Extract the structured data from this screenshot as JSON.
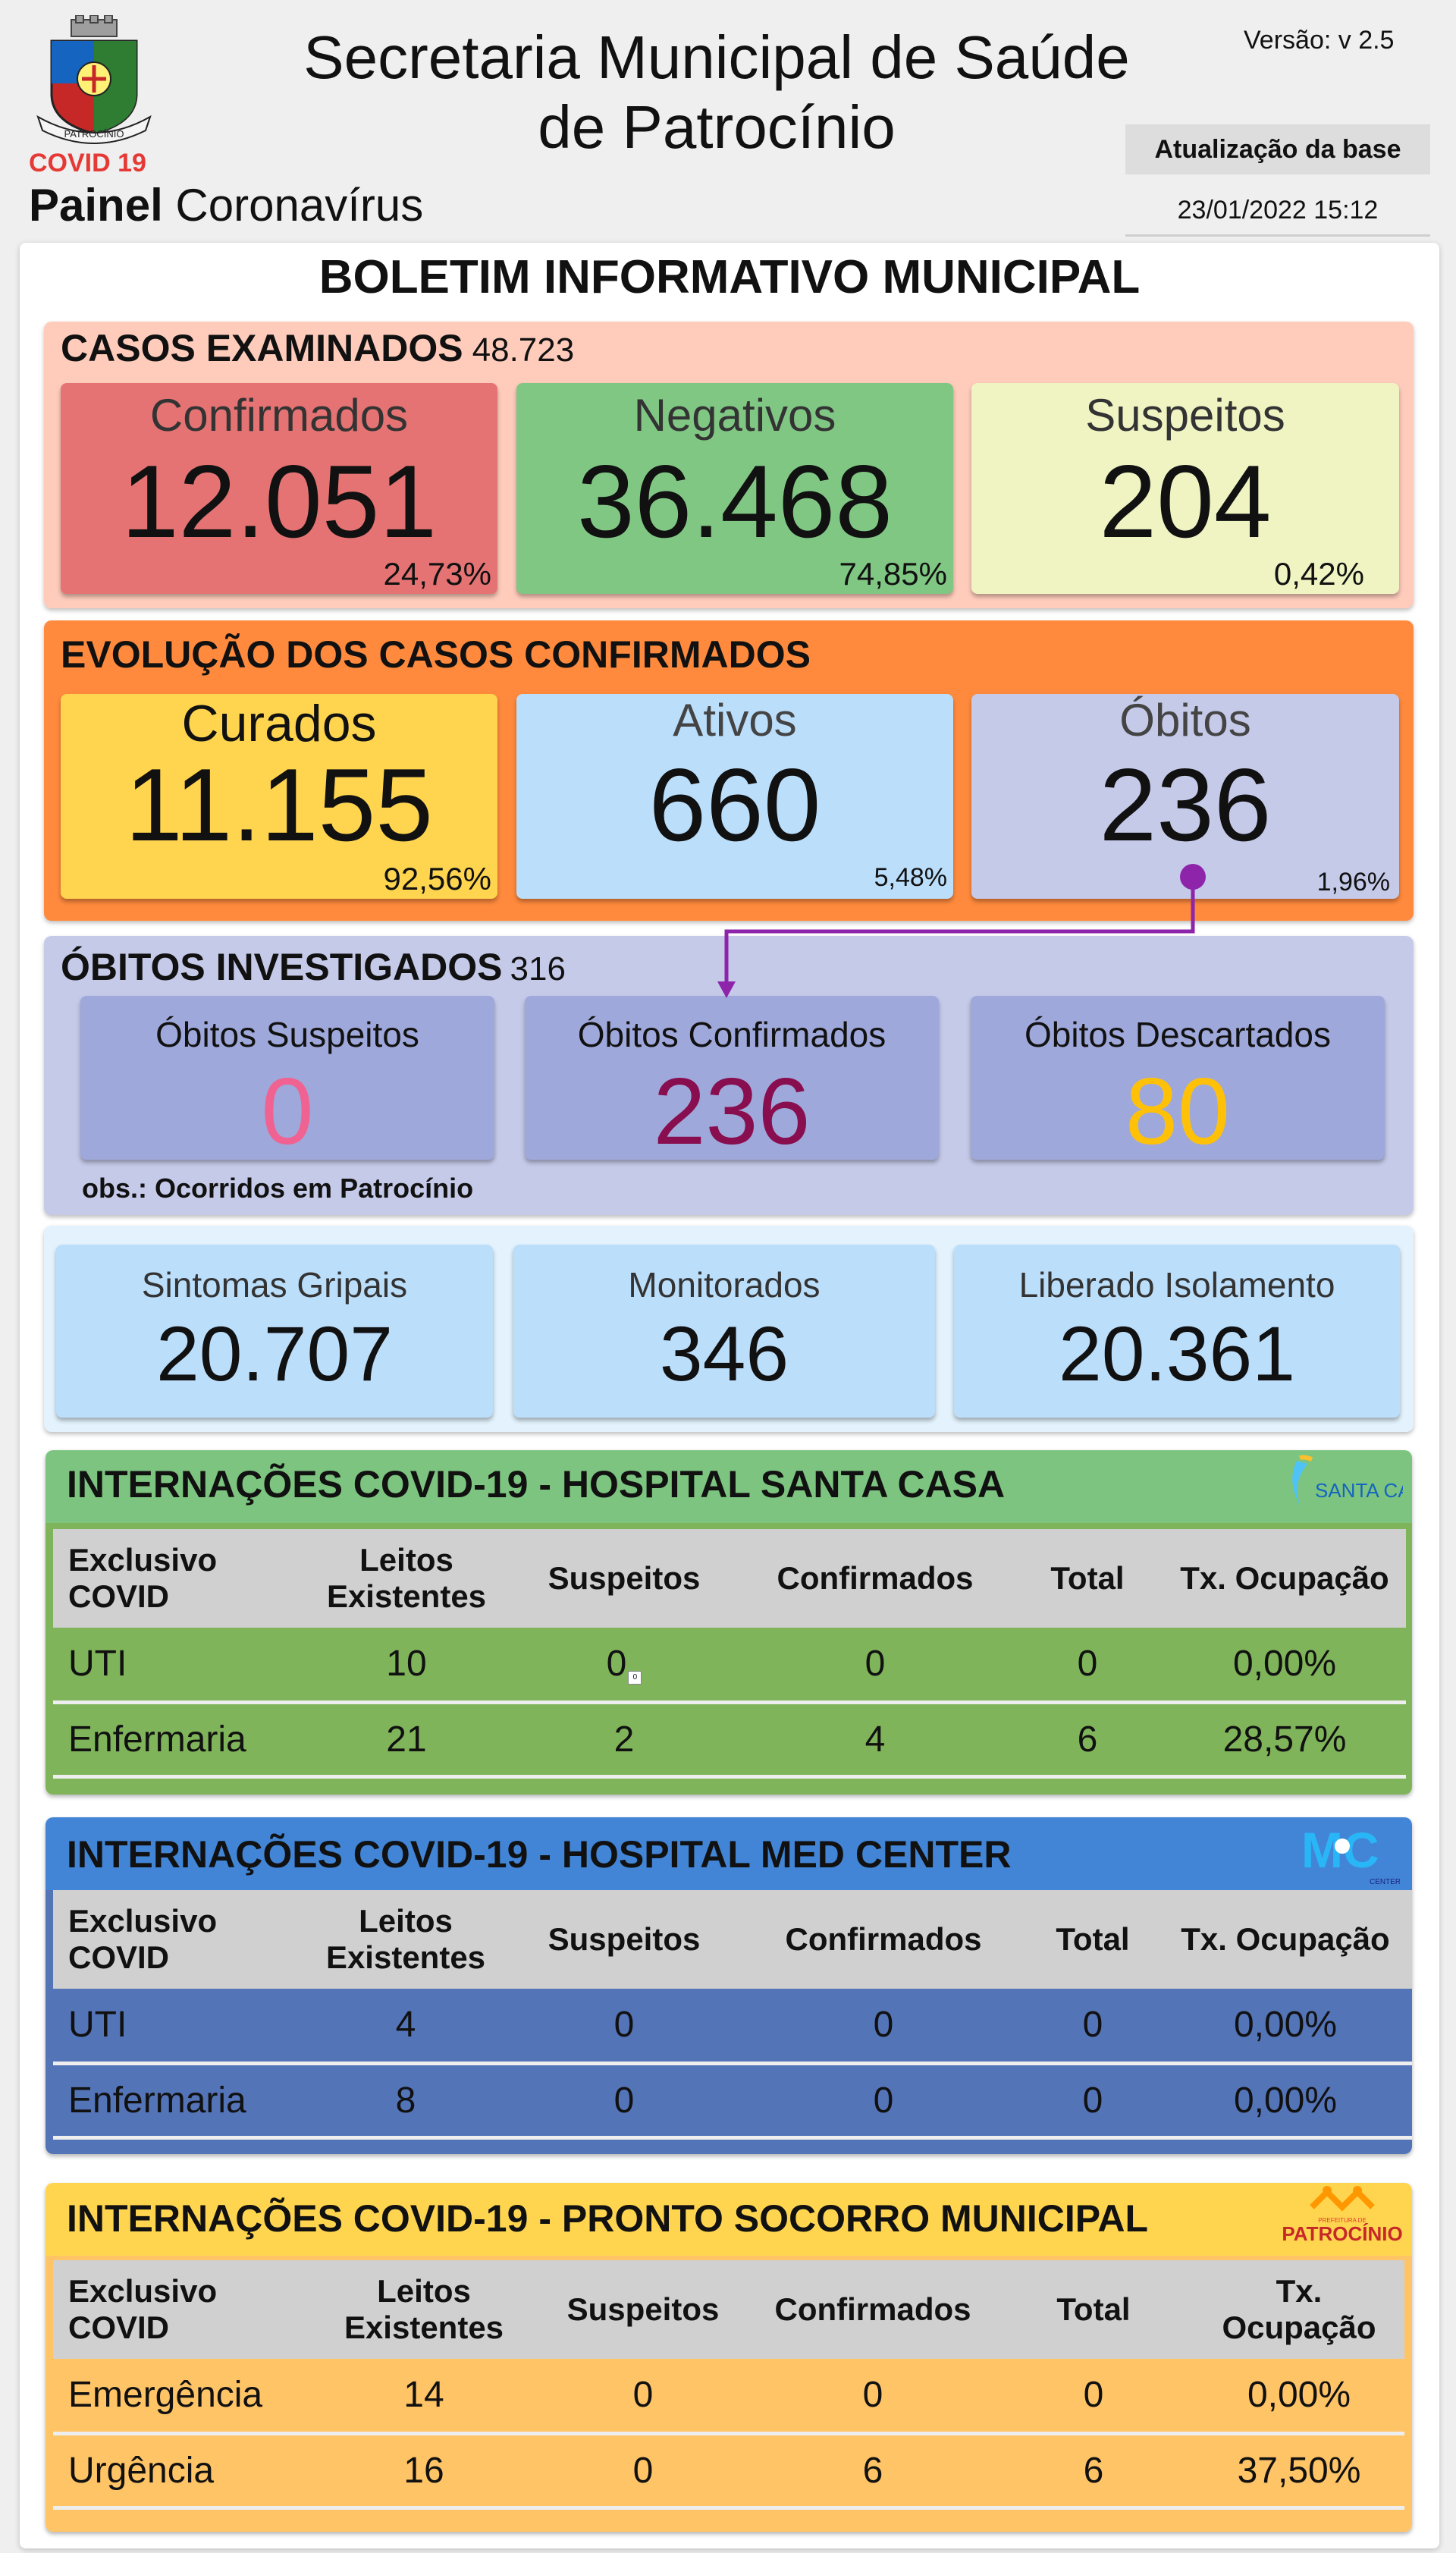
{
  "header": {
    "covid_label": "COVID 19",
    "painel_bold": "Painel",
    "painel_rest": "Coronavírus",
    "title_line1": "Secretaria Municipal de Saúde",
    "title_line2": "de Patrocínio",
    "version": "Versão: v 2.5",
    "update_label": "Atualização da base",
    "update_date": "23/01/2022 15:12",
    "crest_text": "PATROCÍNIO"
  },
  "boletim": "BOLETIM INFORMATIVO MUNICIPAL",
  "casos_examinados": {
    "title": "CASOS EXAMINADOS",
    "total": "48.723",
    "cards": [
      {
        "label": "Confirmados",
        "value": "12.051",
        "pct": "24,73%",
        "color": "#e57373"
      },
      {
        "label": "Negativos",
        "value": "36.468",
        "pct": "74,85%",
        "color": "#81c784"
      },
      {
        "label": "Suspeitos",
        "value": "204",
        "pct": "0,42%",
        "color": "#f0f4c3"
      }
    ]
  },
  "evolucao": {
    "title": "EVOLUÇÃO DOS CASOS CONFIRMADOS",
    "cards": [
      {
        "label": "Curados",
        "value": "11.155",
        "pct": "92,56%",
        "color": "#ffd54f"
      },
      {
        "label": "Ativos",
        "value": "660",
        "pct": "5,48%",
        "color": "#bbdefb"
      },
      {
        "label": "Óbitos",
        "value": "236",
        "pct": "1,96%",
        "color": "#c5cae9"
      }
    ]
  },
  "obitos_investigados": {
    "title": "ÓBITOS INVESTIGADOS",
    "total": "316",
    "cards": [
      {
        "label": "Óbitos Suspeitos",
        "value": "0",
        "value_color": "#f06292"
      },
      {
        "label": "Óbitos Confirmados",
        "value": "236",
        "value_color": "#880e4f"
      },
      {
        "label": "Óbitos Descartados",
        "value": "80",
        "value_color": "#ffc107"
      }
    ],
    "obs": "obs.: Ocorridos em Patrocínio"
  },
  "sintomas": [
    {
      "label": "Sintomas Gripais",
      "value": "20.707"
    },
    {
      "label": "Monitorados",
      "value": "346"
    },
    {
      "label": "Liberado Isolamento",
      "value": "20.361"
    }
  ],
  "hospitals": [
    {
      "title": "INTERNAÇÕES COVID-19 - HOSPITAL SANTA CASA",
      "logo_text": "SANTA CASA",
      "headers": [
        "Exclusivo COVID",
        "Leitos Existentes",
        "Suspeitos",
        "Confirmados",
        "Total",
        "Tx. Ocupação"
      ],
      "rows": [
        [
          "UTI",
          "10",
          "0",
          "0",
          "0",
          "0,00%"
        ],
        [
          "Enfermaria",
          "21",
          "2",
          "4",
          "6",
          "28,57%"
        ]
      ],
      "tiny_marker": "0"
    },
    {
      "title": "INTERNAÇÕES COVID-19 - HOSPITAL MED CENTER",
      "logo_text": "MC",
      "logo_sub": "CENTER",
      "headers": [
        "Exclusivo COVID",
        "Leitos Existentes",
        "Suspeitos",
        "Confirmados",
        "Total",
        "Tx. Ocupação"
      ],
      "rows": [
        [
          "UTI",
          "4",
          "0",
          "0",
          "0",
          "0,00%"
        ],
        [
          "Enfermaria",
          "8",
          "0",
          "0",
          "0",
          "0,00%"
        ]
      ]
    },
    {
      "title": "INTERNAÇÕES COVID-19 - PRONTO SOCORRO MUNICIPAL",
      "logo_text": "PATROCÍNIO",
      "logo_sub": "PREFEITURA DE",
      "headers": [
        "Exclusivo COVID",
        "Leitos Existentes",
        "Suspeitos",
        "Confirmados",
        "Total",
        "Tx. Ocupação"
      ],
      "rows": [
        [
          "Emergência",
          "14",
          "0",
          "0",
          "0",
          "0,00%"
        ],
        [
          "Urgência",
          "16",
          "0",
          "6",
          "6",
          "37,50%"
        ]
      ]
    }
  ]
}
